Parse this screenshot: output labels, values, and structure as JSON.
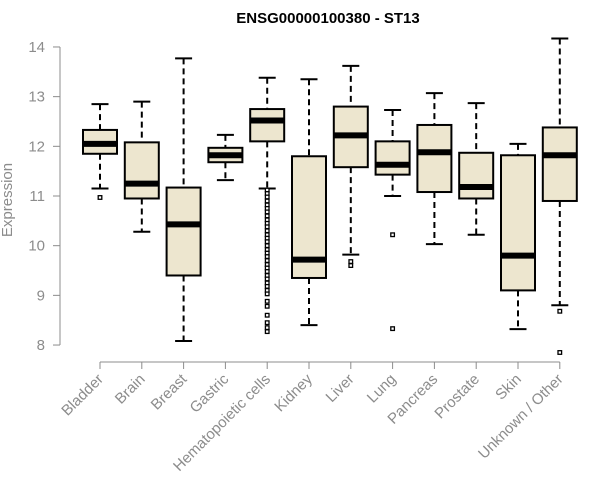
{
  "chart_data": {
    "type": "boxplot",
    "title": "ENSG00000100380 - ST13",
    "xlabel": "",
    "ylabel": "Expression",
    "ylim": [
      7.9,
      14.1
    ],
    "yticks": [
      8,
      9,
      10,
      11,
      12,
      13,
      14
    ],
    "colors": {
      "box_fill": "#ede6cf",
      "box_stroke": "#000000",
      "axis": "#8c8c8c"
    },
    "categories": [
      "Bladder",
      "Brain",
      "Breast",
      "Gastric",
      "Hematopoietic cells",
      "Kidney",
      "Liver",
      "Lung",
      "Pancreas",
      "Prostate",
      "Skin",
      "Unknown / Other"
    ],
    "boxes": [
      {
        "category": "Bladder",
        "whisker_low": 11.15,
        "q1": 11.85,
        "median": 12.05,
        "q3": 12.33,
        "whisker_high": 12.85,
        "outliers": [
          10.97
        ]
      },
      {
        "category": "Brain",
        "whisker_low": 10.28,
        "q1": 10.95,
        "median": 11.25,
        "q3": 12.08,
        "whisker_high": 12.9,
        "outliers": []
      },
      {
        "category": "Breast",
        "whisker_low": 8.08,
        "q1": 9.4,
        "median": 10.43,
        "q3": 11.17,
        "whisker_high": 13.77,
        "outliers": []
      },
      {
        "category": "Gastric",
        "whisker_low": 11.32,
        "q1": 11.68,
        "median": 11.82,
        "q3": 11.97,
        "whisker_high": 12.23,
        "outliers": []
      },
      {
        "category": "Hematopoietic cells",
        "whisker_low": 11.15,
        "q1": 12.1,
        "median": 12.52,
        "q3": 12.75,
        "whisker_high": 13.38,
        "outliers": [
          11.12,
          11.05,
          10.98,
          10.9,
          10.82,
          10.75,
          10.68,
          10.6,
          10.52,
          10.45,
          10.38,
          10.3,
          10.22,
          10.15,
          10.08,
          10.0,
          9.92,
          9.85,
          9.78,
          9.7,
          9.62,
          9.55,
          9.48,
          9.4,
          9.33,
          9.25,
          9.18,
          9.1,
          9.03,
          8.88,
          8.78,
          8.6,
          8.45,
          8.35,
          8.27
        ]
      },
      {
        "category": "Kidney",
        "whisker_low": 8.4,
        "q1": 9.35,
        "median": 9.72,
        "q3": 11.8,
        "whisker_high": 13.35,
        "outliers": []
      },
      {
        "category": "Liver",
        "whisker_low": 9.82,
        "q1": 11.58,
        "median": 12.22,
        "q3": 12.8,
        "whisker_high": 13.62,
        "outliers": [
          9.68,
          9.6
        ]
      },
      {
        "category": "Lung",
        "whisker_low": 11.0,
        "q1": 11.43,
        "median": 11.63,
        "q3": 12.1,
        "whisker_high": 12.73,
        "outliers": [
          10.22,
          8.33
        ]
      },
      {
        "category": "Pancreas",
        "whisker_low": 10.03,
        "q1": 11.08,
        "median": 11.88,
        "q3": 12.43,
        "whisker_high": 13.07,
        "outliers": []
      },
      {
        "category": "Prostate",
        "whisker_low": 10.22,
        "q1": 10.95,
        "median": 11.18,
        "q3": 11.87,
        "whisker_high": 12.87,
        "outliers": []
      },
      {
        "category": "Skin",
        "whisker_low": 8.32,
        "q1": 9.1,
        "median": 9.8,
        "q3": 11.82,
        "whisker_high": 12.05,
        "outliers": []
      },
      {
        "category": "Unknown / Other",
        "whisker_low": 8.8,
        "q1": 10.9,
        "median": 11.82,
        "q3": 12.38,
        "whisker_high": 14.17,
        "outliers": [
          8.68,
          7.85
        ]
      }
    ]
  }
}
